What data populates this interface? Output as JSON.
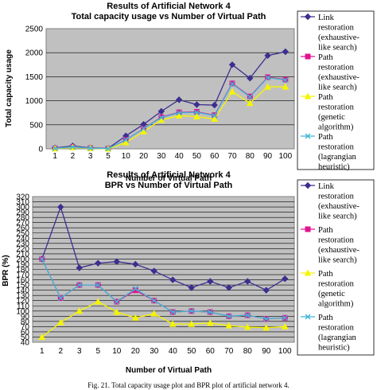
{
  "chart_data": [
    {
      "type": "line",
      "title": "Results of Artificial Network 4",
      "subtitle": "Total capacity usage vs Number of Virtual Path",
      "xlabel": "Number of Virtual Path",
      "ylabel": "Total capacity usage",
      "categories": [
        "1",
        "2",
        "3",
        "5",
        "10",
        "20",
        "30",
        "40",
        "50",
        "60",
        "70",
        "80",
        "90",
        "100"
      ],
      "ylim": [
        0,
        2500
      ],
      "yticks": [
        0,
        500,
        1000,
        1500,
        2000,
        2500
      ],
      "grid": true,
      "legend_position": "right",
      "series": [
        {
          "name": "Link restoration (exhaustive-like search)",
          "color": "#3b2f8f",
          "marker": "diamond",
          "values": [
            20,
            60,
            20,
            10,
            270,
            510,
            780,
            1020,
            920,
            910,
            1750,
            1470,
            1940,
            2020
          ]
        },
        {
          "name": "Path restoration (exhaustive-like search)",
          "color": "#e0148f",
          "marker": "square",
          "values": [
            10,
            40,
            15,
            5,
            190,
            420,
            660,
            760,
            770,
            700,
            1360,
            1090,
            1490,
            1440
          ]
        },
        {
          "name": "Path restoration (genetic algorithm)",
          "color": "#f5f500",
          "marker": "triangle",
          "values": [
            5,
            30,
            10,
            0,
            130,
            360,
            600,
            690,
            670,
            620,
            1190,
            950,
            1290,
            1290
          ]
        },
        {
          "name": "Path restoration (lagrangian heuristic)",
          "color": "#3fb5d6",
          "marker": "cross",
          "values": [
            10,
            40,
            15,
            5,
            190,
            420,
            650,
            750,
            760,
            690,
            1350,
            1080,
            1480,
            1430
          ]
        }
      ]
    },
    {
      "type": "line",
      "title": "Results of Artificial Network 4",
      "subtitle": "BPR vs Number of Virtual Path",
      "xlabel": "Number of Virtual Path",
      "ylabel": "BPR (%)",
      "categories": [
        "1",
        "2",
        "3",
        "5",
        "10",
        "20",
        "30",
        "40",
        "50",
        "60",
        "70",
        "80",
        "90",
        "100"
      ],
      "ylim": [
        40,
        320
      ],
      "yticks": [
        40,
        50,
        60,
        70,
        80,
        90,
        100,
        110,
        120,
        130,
        140,
        150,
        160,
        170,
        180,
        190,
        200,
        210,
        220,
        230,
        240,
        250,
        260,
        270,
        280,
        290,
        300,
        310,
        320
      ],
      "grid": true,
      "legend_position": "right",
      "series": [
        {
          "name": "Link restoration (exhaustive-like search)",
          "color": "#3b2f8f",
          "marker": "diamond",
          "values": [
            200,
            300,
            183,
            192,
            195,
            190,
            177,
            160,
            145,
            157,
            145,
            157,
            140,
            162
          ]
        },
        {
          "name": "Path restoration (exhaustive-like search)",
          "color": "#e0148f",
          "marker": "square",
          "values": [
            200,
            125,
            150,
            150,
            118,
            140,
            120,
            98,
            100,
            98,
            90,
            92,
            85,
            87
          ]
        },
        {
          "name": "Path restoration (genetic algorithm)",
          "color": "#f5f500",
          "marker": "triangle",
          "values": [
            50,
            78,
            100,
            118,
            98,
            87,
            95,
            75,
            75,
            77,
            72,
            69,
            68,
            70
          ]
        },
        {
          "name": "Path restoration (lagrangian heuristic)",
          "color": "#3fb5d6",
          "marker": "cross",
          "values": [
            200,
            125,
            150,
            150,
            118,
            143,
            120,
            98,
            100,
            98,
            90,
            92,
            85,
            87
          ]
        }
      ]
    }
  ],
  "caption": "Fig. 21. Total capacity usage plot and BPR plot of artificial network 4."
}
